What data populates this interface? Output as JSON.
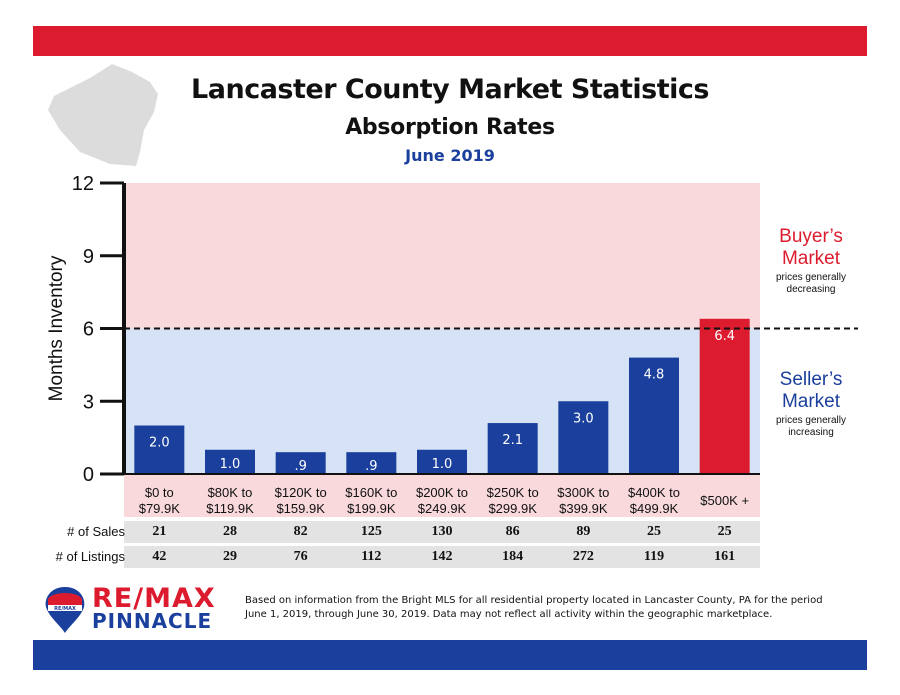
{
  "title": "Lancaster County Market Statistics",
  "subtitle": "Absorption Rates",
  "period": "June 2019",
  "colors": {
    "red": "#dc1c2e",
    "blue": "#1a3f9c",
    "pink_zone": "#f9d9dc",
    "blue_zone": "#d6e3f7"
  },
  "zones": {
    "buyers": {
      "title_line1": "Buyer’s",
      "title_line2": "Market",
      "note_line1": "prices generally",
      "note_line2": "decreasing"
    },
    "sellers": {
      "title_line1": "Seller’s",
      "title_line2": "Market",
      "note_line1": "prices generally",
      "note_line2": "increasing"
    }
  },
  "chart_data": {
    "type": "bar",
    "ylabel": "Months Inventory",
    "ylim": [
      0,
      12
    ],
    "yticks": [
      0,
      3,
      6,
      9,
      12
    ],
    "threshold": 6,
    "grid": false,
    "categories": [
      [
        "$0 to",
        "$79.9K"
      ],
      [
        "$80K to",
        "$119.9K"
      ],
      [
        "$120K to",
        "$159.9K"
      ],
      [
        "$160K to",
        "$199.9K"
      ],
      [
        "$200K to",
        "$249.9K"
      ],
      [
        "$250K to",
        "$299.9K"
      ],
      [
        "$300K to",
        "$399.9K"
      ],
      [
        "$400K to",
        "$499.9K"
      ],
      [
        "$500K +"
      ]
    ],
    "values": [
      2.0,
      1.0,
      0.9,
      0.9,
      1.0,
      2.1,
      3.0,
      4.8,
      6.4
    ],
    "labels": [
      "2.0",
      "1.0",
      ".9",
      ".9",
      "1.0",
      "2.1",
      "3.0",
      "4.8",
      "6.4"
    ],
    "highlight_index": 8
  },
  "table": {
    "sales_label": "# of Sales",
    "listings_label": "# of Listings",
    "sales": [
      "21",
      "28",
      "82",
      "125",
      "130",
      "86",
      "89",
      "25",
      "25"
    ],
    "listings": [
      "42",
      "29",
      "76",
      "112",
      "142",
      "184",
      "272",
      "119",
      "161"
    ]
  },
  "logo": {
    "brand": "RE/MAX",
    "sub": "PINNACLE",
    "balloon_text": "RE/MAX"
  },
  "footnote": {
    "line1": "Based on information from the Bright MLS for all residential property located in Lancaster County, PA for the period",
    "line2": "June 1, 2019, through June 30, 2019.  Data may not reflect all activity within the geographic marketplace."
  }
}
